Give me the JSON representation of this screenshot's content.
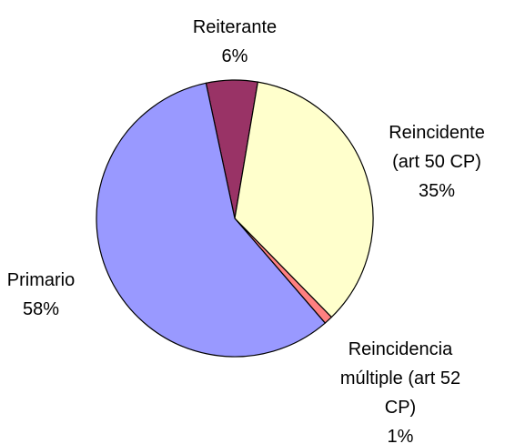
{
  "chart_data": {
    "type": "pie",
    "categories": [
      "Reiterante",
      "Reincidente (art 50 CP)",
      "Reincidencia múltiple (art 52 CP)",
      "Primario"
    ],
    "values": [
      6,
      35,
      1,
      58
    ],
    "value_labels": [
      "6%",
      "35%",
      "1%",
      "58%"
    ],
    "colors": [
      "#993366",
      "#ffffcc",
      "#ff8080",
      "#9999ff"
    ]
  }
}
